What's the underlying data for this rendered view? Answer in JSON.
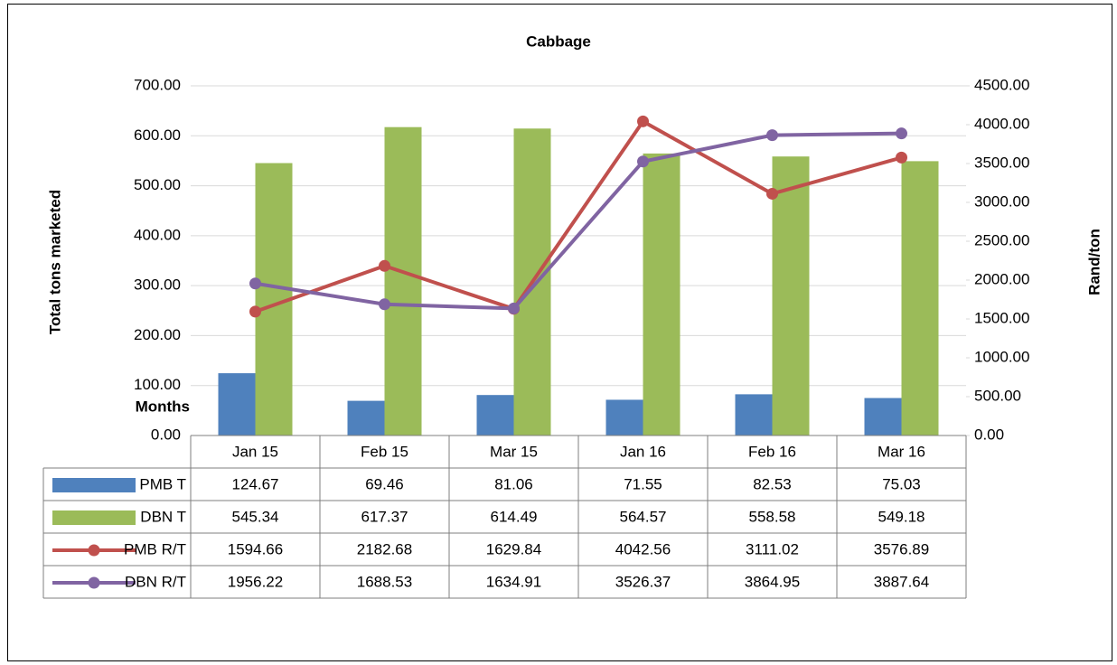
{
  "chart_data": {
    "type": "combo",
    "title": "Cabbage",
    "x_label": "Months",
    "y_label": "Total tons marketed",
    "y2_label": "Rand/ton",
    "categories": [
      "Jan 15",
      "Feb 15",
      "Mar 15",
      "Jan 16",
      "Feb 16",
      "Mar 16"
    ],
    "series": [
      {
        "name": "PMB T",
        "kind": "bar",
        "color": "#4f81bd",
        "values": [
          124.67,
          69.46,
          81.06,
          71.55,
          82.53,
          75.03
        ]
      },
      {
        "name": "DBN T",
        "kind": "bar",
        "color": "#9bbb59",
        "values": [
          545.34,
          617.37,
          614.49,
          564.57,
          558.58,
          549.18
        ]
      },
      {
        "name": "PMB R/T",
        "kind": "line",
        "axis": "y2",
        "color": "#c0504d",
        "values": [
          1594.66,
          2182.68,
          1629.84,
          4042.56,
          3111.02,
          3576.89
        ]
      },
      {
        "name": "DBN R/T",
        "kind": "line",
        "axis": "y2",
        "color": "#8064a2",
        "values": [
          1956.22,
          1688.53,
          1634.91,
          3526.37,
          3864.95,
          3887.64
        ]
      }
    ],
    "ylim": [
      0,
      700
    ],
    "yticks": [
      {
        "value": 0,
        "label": "0.00"
      },
      {
        "value": 100,
        "label": "100.00"
      },
      {
        "value": 200,
        "label": "200.00"
      },
      {
        "value": 300,
        "label": "300.00"
      },
      {
        "value": 400,
        "label": "400.00"
      },
      {
        "value": 500,
        "label": "500.00"
      },
      {
        "value": 600,
        "label": "600.00"
      },
      {
        "value": 700,
        "label": "700.00"
      }
    ],
    "y2lim": [
      0,
      4500
    ],
    "y2ticks": [
      {
        "value": 0,
        "label": "0.00"
      },
      {
        "value": 500,
        "label": "500.00"
      },
      {
        "value": 1000,
        "label": "1000.00"
      },
      {
        "value": 1500,
        "label": "1500.00"
      },
      {
        "value": 2000,
        "label": "2000.00"
      },
      {
        "value": 2500,
        "label": "2500.00"
      },
      {
        "value": 3000,
        "label": "3000.00"
      },
      {
        "value": 3500,
        "label": "3500.00"
      },
      {
        "value": 4000,
        "label": "4000.00"
      },
      {
        "value": 4500,
        "label": "4500.00"
      }
    ],
    "grid": true,
    "data_table": true
  }
}
